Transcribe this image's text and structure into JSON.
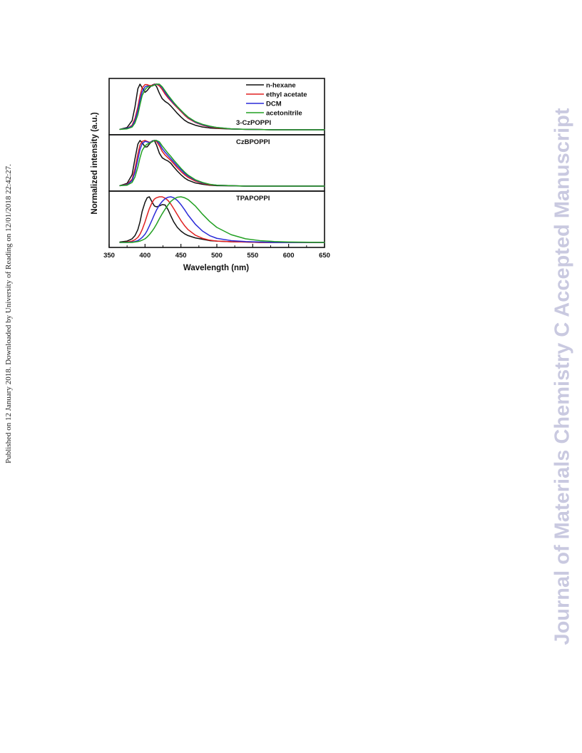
{
  "page": {
    "side_note": "Published on 12 January 2018. Downloaded by University of Reading on 12/01/2018 22:42:27.",
    "watermark": "Journal of Materials Chemistry C Accepted Manuscript"
  },
  "colors": {
    "n-hexane": "#111111",
    "ethyl acetate": "#e02020",
    "DCM": "#2a2ad8",
    "acetonitrile": "#22a022",
    "frame": "#111111"
  },
  "chart_data": {
    "type": "line",
    "xlabel": "Wavelength (nm)",
    "ylabel": "Normalized intensity (a.u.)",
    "xlim": [
      350,
      650
    ],
    "xticks": [
      350,
      400,
      450,
      500,
      550,
      600,
      650
    ],
    "grid": false,
    "legend": {
      "placement": "top-right of top panel",
      "entries": [
        "n-hexane",
        "ethyl acetate",
        "DCM",
        "acetonitrile"
      ]
    },
    "x": [
      365,
      375,
      382,
      386,
      390,
      393,
      396,
      400,
      403,
      406,
      410,
      413,
      416,
      420,
      424,
      428,
      432,
      436,
      440,
      445,
      450,
      455,
      460,
      470,
      480,
      490,
      500,
      520,
      540,
      560,
      580,
      600,
      620,
      650
    ],
    "panels": [
      {
        "label": "3-CzPOPPI",
        "series": [
          {
            "name": "n-hexane",
            "values": [
              0.01,
              0.05,
              0.2,
              0.5,
              0.9,
              1.0,
              0.92,
              0.82,
              0.86,
              0.92,
              0.98,
              1.0,
              0.95,
              0.8,
              0.68,
              0.62,
              0.58,
              0.52,
              0.45,
              0.36,
              0.28,
              0.21,
              0.16,
              0.1,
              0.06,
              0.04,
              0.03,
              0.015,
              0.01,
              0.005,
              0.0,
              0.0,
              0.0,
              0.0
            ]
          },
          {
            "name": "ethyl acetate",
            "values": [
              0.01,
              0.03,
              0.1,
              0.25,
              0.5,
              0.75,
              0.92,
              0.99,
              0.99,
              0.97,
              0.97,
              1.0,
              1.0,
              0.96,
              0.88,
              0.78,
              0.7,
              0.63,
              0.56,
              0.48,
              0.4,
              0.32,
              0.25,
              0.16,
              0.1,
              0.06,
              0.04,
              0.02,
              0.01,
              0.005,
              0.0,
              0.0,
              0.0,
              0.0
            ]
          },
          {
            "name": "DCM",
            "values": [
              0.01,
              0.03,
              0.08,
              0.2,
              0.42,
              0.65,
              0.83,
              0.94,
              0.96,
              0.95,
              0.96,
              0.99,
              1.0,
              0.99,
              0.92,
              0.82,
              0.73,
              0.65,
              0.58,
              0.5,
              0.42,
              0.34,
              0.27,
              0.17,
              0.11,
              0.07,
              0.05,
              0.02,
              0.01,
              0.005,
              0.0,
              0.0,
              0.0,
              0.0
            ]
          },
          {
            "name": "acetonitrile",
            "values": [
              0.01,
              0.02,
              0.06,
              0.15,
              0.33,
              0.55,
              0.75,
              0.88,
              0.93,
              0.95,
              0.96,
              0.98,
              1.0,
              1.0,
              0.94,
              0.85,
              0.76,
              0.68,
              0.6,
              0.51,
              0.43,
              0.35,
              0.28,
              0.18,
              0.12,
              0.08,
              0.05,
              0.02,
              0.01,
              0.005,
              0.0,
              0.0,
              0.0,
              0.0
            ]
          }
        ]
      },
      {
        "label": "CzBPOPPI",
        "series": [
          {
            "name": "n-hexane",
            "values": [
              0.01,
              0.06,
              0.25,
              0.6,
              0.92,
              1.0,
              0.95,
              0.86,
              0.86,
              0.92,
              0.99,
              1.0,
              0.9,
              0.72,
              0.62,
              0.58,
              0.55,
              0.5,
              0.42,
              0.33,
              0.25,
              0.18,
              0.13,
              0.07,
              0.04,
              0.02,
              0.01,
              0.005,
              0.0,
              0.0,
              0.0,
              0.0,
              0.0,
              0.0
            ]
          },
          {
            "name": "ethyl acetate",
            "values": [
              0.01,
              0.04,
              0.15,
              0.38,
              0.7,
              0.9,
              0.98,
              1.0,
              0.98,
              0.96,
              0.98,
              1.0,
              0.98,
              0.88,
              0.76,
              0.68,
              0.62,
              0.56,
              0.49,
              0.4,
              0.32,
              0.25,
              0.19,
              0.11,
              0.06,
              0.03,
              0.02,
              0.01,
              0.0,
              0.0,
              0.0,
              0.0,
              0.0,
              0.0
            ]
          },
          {
            "name": "DCM",
            "values": [
              0.01,
              0.03,
              0.12,
              0.3,
              0.58,
              0.8,
              0.93,
              0.98,
              0.97,
              0.95,
              0.98,
              1.0,
              1.0,
              0.93,
              0.82,
              0.74,
              0.67,
              0.6,
              0.53,
              0.44,
              0.36,
              0.28,
              0.22,
              0.13,
              0.07,
              0.04,
              0.02,
              0.01,
              0.0,
              0.0,
              0.0,
              0.0,
              0.0,
              0.0
            ]
          },
          {
            "name": "acetonitrile",
            "values": [
              0.01,
              0.02,
              0.08,
              0.2,
              0.42,
              0.62,
              0.78,
              0.88,
              0.92,
              0.94,
              0.97,
              1.0,
              1.0,
              0.97,
              0.88,
              0.8,
              0.72,
              0.65,
              0.57,
              0.48,
              0.39,
              0.31,
              0.24,
              0.14,
              0.08,
              0.04,
              0.02,
              0.01,
              0.0,
              0.0,
              0.0,
              0.0,
              0.0,
              0.0
            ]
          }
        ]
      },
      {
        "label": "TPAPOPPI",
        "series": [
          {
            "name": "n-hexane",
            "values": [
              0.01,
              0.03,
              0.08,
              0.15,
              0.28,
              0.45,
              0.68,
              0.88,
              0.98,
              1.0,
              0.88,
              0.8,
              0.78,
              0.8,
              0.83,
              0.82,
              0.72,
              0.58,
              0.45,
              0.33,
              0.25,
              0.19,
              0.15,
              0.1,
              0.07,
              0.04,
              0.03,
              0.015,
              0.01,
              0.0,
              0.0,
              0.0,
              0.0,
              0.0
            ]
          },
          {
            "name": "ethyl acetate",
            "values": [
              0.0,
              0.01,
              0.03,
              0.06,
              0.11,
              0.18,
              0.28,
              0.45,
              0.6,
              0.74,
              0.88,
              0.95,
              0.98,
              1.0,
              1.0,
              0.97,
              0.92,
              0.84,
              0.74,
              0.61,
              0.48,
              0.37,
              0.28,
              0.16,
              0.09,
              0.05,
              0.03,
              0.015,
              0.01,
              0.0,
              0.0,
              0.0,
              0.0,
              0.0
            ]
          },
          {
            "name": "DCM",
            "values": [
              0.0,
              0.0,
              0.01,
              0.02,
              0.04,
              0.07,
              0.11,
              0.18,
              0.26,
              0.36,
              0.5,
              0.61,
              0.71,
              0.82,
              0.9,
              0.96,
              0.99,
              1.0,
              0.98,
              0.92,
              0.83,
              0.72,
              0.6,
              0.4,
              0.25,
              0.15,
              0.09,
              0.04,
              0.02,
              0.01,
              0.0,
              0.0,
              0.0,
              0.0
            ]
          },
          {
            "name": "acetonitrile",
            "values": [
              0.0,
              0.0,
              0.0,
              0.01,
              0.02,
              0.03,
              0.05,
              0.08,
              0.12,
              0.17,
              0.25,
              0.32,
              0.4,
              0.52,
              0.63,
              0.73,
              0.82,
              0.9,
              0.95,
              0.99,
              1.0,
              0.98,
              0.94,
              0.8,
              0.62,
              0.46,
              0.33,
              0.17,
              0.08,
              0.04,
              0.02,
              0.01,
              0.005,
              0.0
            ]
          }
        ]
      }
    ]
  }
}
